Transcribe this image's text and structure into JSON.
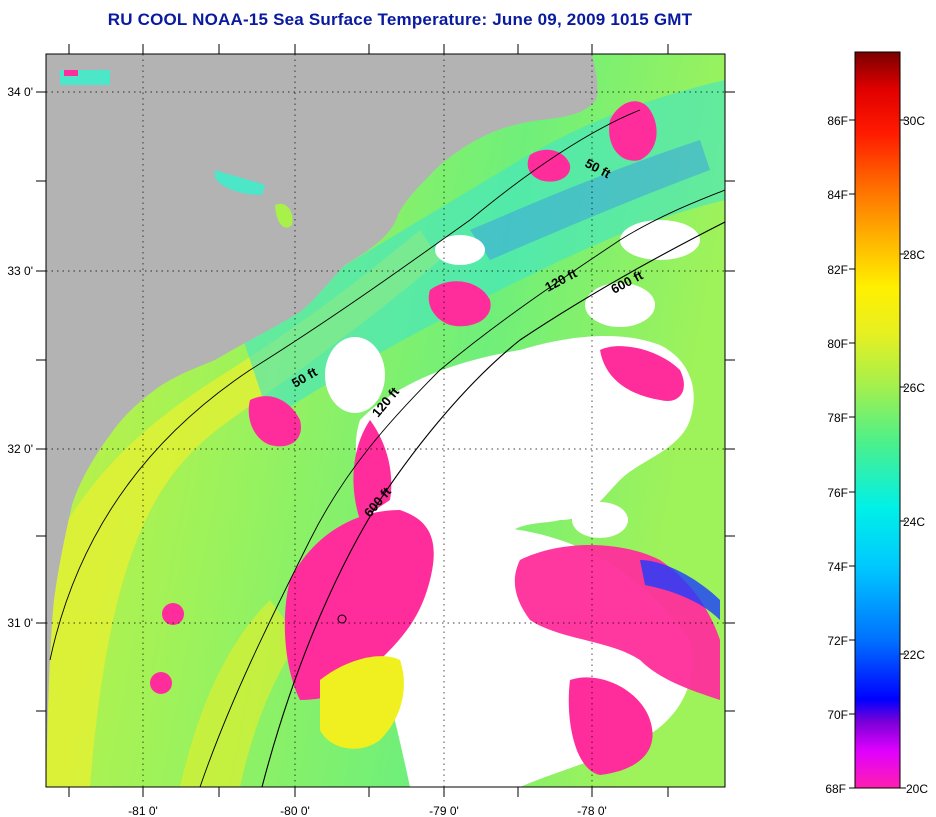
{
  "title": "RU COOL  NOAA-15  Sea Surface Temperature:  June 09, 2009 1015 GMT",
  "map": {
    "longitude_labels": [
      "-81 0'",
      "-80 0'",
      "-79 0'",
      "-78 0'"
    ],
    "latitude_labels": [
      "34 0'",
      "33 0'",
      "32 0'",
      "31 0'"
    ],
    "isobath_labels": [
      "50 ft",
      "120 ft",
      "600 ft",
      "50 ft",
      "120 ft",
      "600 ft"
    ],
    "colors": {
      "land": "#b3b3b3",
      "clouds": "#ffffff",
      "cold_water": "#ff2d9b",
      "warm_water": "#9ef25a"
    }
  },
  "colorbar": {
    "fahrenheit_labels": [
      "86F",
      "84F",
      "82F",
      "80F",
      "78F",
      "76F",
      "74F",
      "72F",
      "70F",
      "68F"
    ],
    "celsius_labels": [
      "30C",
      "28C",
      "26C",
      "24C",
      "22C",
      "20C"
    ],
    "stops": [
      "#ff1fb0",
      "#e000ff",
      "#7a00d8",
      "#0000ff",
      "#0070ff",
      "#00c8ff",
      "#00f0e8",
      "#4cf08a",
      "#a8f04a",
      "#e8f020",
      "#fff000",
      "#ffb000",
      "#ff6a00",
      "#ff1a00",
      "#e00000",
      "#7a0000"
    ]
  }
}
